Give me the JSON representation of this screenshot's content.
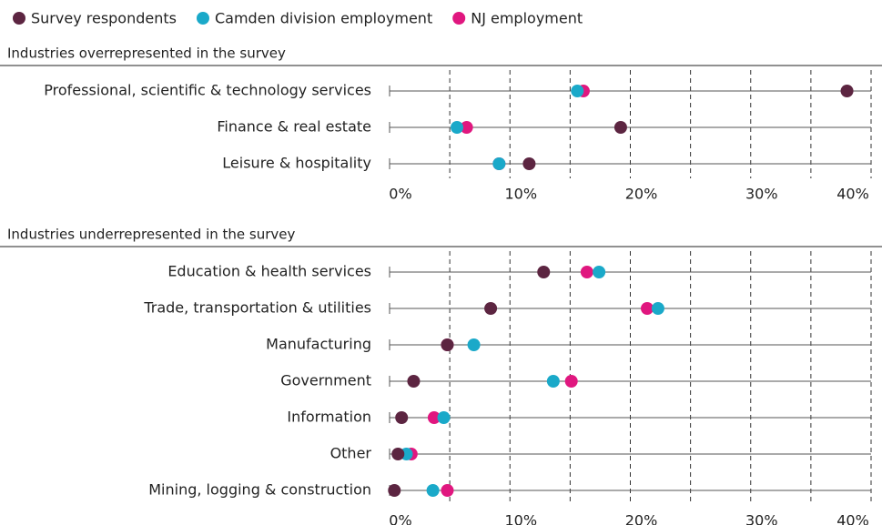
{
  "chart_data": [
    {
      "type": "dot",
      "title": "Industries overrepresented in the survey",
      "categories": [
        "Professional, scientific & technology services",
        "Finance & real estate",
        "Leisure & hospitality"
      ],
      "series": [
        {
          "name": "Survey respondents",
          "color": "#5c2541",
          "values": [
            38.0,
            19.2,
            11.6
          ]
        },
        {
          "name": "Camden division employment",
          "color": "#1aa9c9",
          "values": [
            15.6,
            5.6,
            9.1
          ]
        },
        {
          "name": "NJ employment",
          "color": "#e0177f",
          "values": [
            16.1,
            6.4,
            9.1
          ]
        }
      ],
      "xlim": [
        0,
        40
      ],
      "xticks": [
        {
          "value": 0,
          "label": "0%"
        },
        {
          "value": 10,
          "label": "10%"
        },
        {
          "value": 20,
          "label": "20%"
        },
        {
          "value": 30,
          "label": "30%"
        },
        {
          "value": 40,
          "label": "40%"
        }
      ],
      "xminorticks": [
        5,
        15,
        25,
        35
      ],
      "grid": true
    },
    {
      "type": "dot",
      "title": "Industries underrepresented in the survey",
      "categories": [
        "Education & health services",
        "Trade, transportation & utilities",
        "Manufacturing",
        "Government",
        "Information",
        "Other",
        "Mining, logging & construction"
      ],
      "series": [
        {
          "color": "#5c2541",
          "values": [
            12.8,
            8.4,
            4.8,
            2.0,
            1.0,
            0.7,
            0.4
          ]
        },
        {
          "color": "#1aa9c9",
          "values": [
            17.4,
            22.3,
            7.0,
            13.6,
            4.5,
            1.4,
            3.6
          ]
        },
        {
          "color": "#e0177f",
          "values": [
            16.4,
            21.4,
            4.8,
            15.1,
            3.7,
            1.8,
            4.8
          ]
        }
      ],
      "xlim": [
        0,
        40
      ],
      "xticks": [
        {
          "value": 0,
          "label": "0%"
        },
        {
          "value": 10,
          "label": "10%"
        },
        {
          "value": 20,
          "label": "20%"
        },
        {
          "value": 30,
          "label": "30%"
        },
        {
          "value": 40,
          "label": "40%"
        }
      ],
      "xminorticks": [
        5,
        15,
        25,
        35
      ],
      "grid": true
    }
  ]
}
